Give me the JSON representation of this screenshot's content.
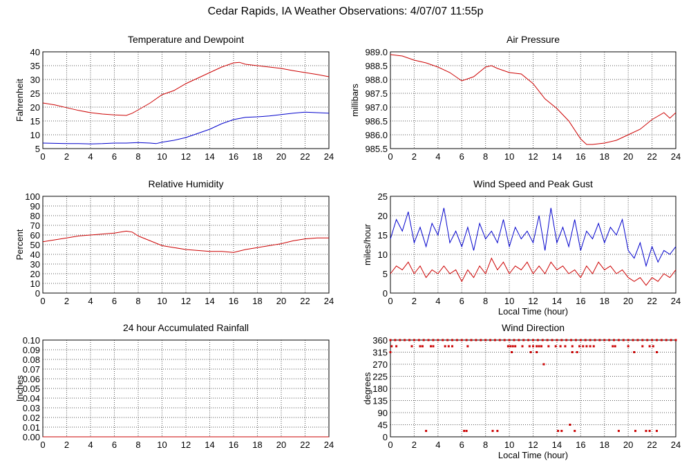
{
  "title": "Cedar Rapids, IA Weather Observations: 4/07/07 11:55p",
  "colors": {
    "red": "#cc0000",
    "blue": "#0000cc",
    "grid": "#555555"
  },
  "chart_data": [
    {
      "id": "temp",
      "type": "line",
      "title": "Temperature and Dewpoint",
      "xlabel": "",
      "ylabel": "Fahrenheit",
      "xlim": [
        0,
        24
      ],
      "ylim": [
        5,
        40
      ],
      "xticks": [
        "0",
        "2",
        "4",
        "6",
        "8",
        "10",
        "12",
        "14",
        "16",
        "18",
        "20",
        "22",
        "24"
      ],
      "yticks": [
        "5",
        "10",
        "15",
        "20",
        "25",
        "30",
        "35",
        "40"
      ],
      "grid": true,
      "series": [
        {
          "color": "#cc0000",
          "x": [
            0,
            1,
            2,
            3,
            4,
            5,
            6,
            7,
            7.5,
            8,
            9,
            10,
            11,
            12,
            13,
            14,
            15,
            16,
            16.5,
            17,
            18,
            19,
            20,
            21,
            22,
            23,
            24
          ],
          "values": [
            21.5,
            20.8,
            19.8,
            18.8,
            18.0,
            17.5,
            17.2,
            17.0,
            17.8,
            19.0,
            21.5,
            24.5,
            26.0,
            28.5,
            30.5,
            32.5,
            34.5,
            36.0,
            36.2,
            35.5,
            35.0,
            34.5,
            34.0,
            33.2,
            32.5,
            31.8,
            31.0
          ]
        },
        {
          "color": "#0000cc",
          "x": [
            0,
            1,
            2,
            3,
            4,
            5,
            6,
            7,
            8,
            9,
            9.5,
            10,
            11,
            12,
            13,
            14,
            15,
            16,
            17,
            18,
            19,
            20,
            21,
            22,
            23,
            24
          ],
          "values": [
            7.0,
            6.9,
            6.8,
            6.8,
            6.7,
            6.8,
            7.0,
            7.0,
            7.2,
            7.0,
            6.8,
            7.3,
            8.0,
            9.0,
            10.5,
            12.0,
            14.0,
            15.5,
            16.3,
            16.5,
            16.8,
            17.3,
            17.8,
            18.2,
            18.0,
            17.8
          ]
        }
      ]
    },
    {
      "id": "pressure",
      "type": "line",
      "title": "Air Pressure",
      "xlabel": "",
      "ylabel": "millibars",
      "xlim": [
        0,
        24
      ],
      "ylim": [
        985.5,
        989.0
      ],
      "xticks": [
        "0",
        "2",
        "4",
        "6",
        "8",
        "10",
        "12",
        "14",
        "16",
        "18",
        "20",
        "22",
        "24"
      ],
      "yticks": [
        "985.5",
        "986.0",
        "986.5",
        "987.0",
        "987.5",
        "988.0",
        "988.5",
        "989.0"
      ],
      "grid": true,
      "series": [
        {
          "color": "#cc0000",
          "x": [
            0,
            1,
            2,
            3,
            4,
            5,
            6,
            7,
            8,
            8.5,
            9,
            10,
            11,
            12,
            13,
            14,
            15,
            16,
            16.5,
            17,
            18,
            19,
            20,
            21,
            22,
            23,
            23.5,
            24
          ],
          "values": [
            988.9,
            988.85,
            988.7,
            988.6,
            988.45,
            988.25,
            987.95,
            988.1,
            988.45,
            988.5,
            988.4,
            988.25,
            988.2,
            987.85,
            987.3,
            986.95,
            986.5,
            985.85,
            985.65,
            985.65,
            985.7,
            985.8,
            986.0,
            986.2,
            986.55,
            986.8,
            986.6,
            986.8
          ]
        }
      ]
    },
    {
      "id": "humidity",
      "type": "line",
      "title": "Relative Humidity",
      "xlabel": "",
      "ylabel": "Percent",
      "xlim": [
        0,
        24
      ],
      "ylim": [
        0,
        100
      ],
      "xticks": [
        "0",
        "2",
        "4",
        "6",
        "8",
        "10",
        "12",
        "14",
        "16",
        "18",
        "20",
        "22",
        "24"
      ],
      "yticks": [
        "0",
        "10",
        "20",
        "30",
        "40",
        "50",
        "60",
        "70",
        "80",
        "90",
        "100"
      ],
      "grid": true,
      "series": [
        {
          "color": "#cc0000",
          "x": [
            0,
            1,
            2,
            3,
            4,
            5,
            6,
            7,
            7.5,
            8,
            9,
            10,
            11,
            12,
            13,
            14,
            15,
            16,
            17,
            18,
            19,
            20,
            21,
            22,
            23,
            24
          ],
          "values": [
            53,
            55,
            57,
            59,
            60,
            61,
            62,
            64,
            63,
            59,
            54,
            49,
            47,
            45,
            44,
            43,
            43,
            42,
            45,
            47,
            49,
            51,
            54,
            56,
            57,
            57
          ]
        }
      ]
    },
    {
      "id": "wind",
      "type": "line",
      "title": "Wind Speed and Peak Gust",
      "xlabel": "Local Time (hour)",
      "ylabel": "miles/hour",
      "xlim": [
        0,
        24
      ],
      "ylim": [
        0,
        25
      ],
      "xticks": [
        "0",
        "2",
        "4",
        "6",
        "8",
        "10",
        "12",
        "14",
        "16",
        "18",
        "20",
        "22",
        "24"
      ],
      "yticks": [
        "0",
        "5",
        "10",
        "15",
        "20",
        "25"
      ],
      "grid": true,
      "series": [
        {
          "color": "#0000cc",
          "x": [
            0,
            0.5,
            1,
            1.5,
            2,
            2.5,
            3,
            3.5,
            4,
            4.5,
            5,
            5.5,
            6,
            6.5,
            7,
            7.5,
            8,
            8.5,
            9,
            9.5,
            10,
            10.5,
            11,
            11.5,
            12,
            12.5,
            13,
            13.5,
            14,
            14.5,
            15,
            15.5,
            16,
            16.5,
            17,
            17.5,
            18,
            18.5,
            19,
            19.5,
            20,
            20.5,
            21,
            21.5,
            22,
            22.5,
            23,
            23.5,
            24
          ],
          "values": [
            14,
            19,
            16,
            21,
            13,
            17,
            12,
            18,
            15,
            22,
            13,
            16,
            12,
            17,
            11,
            18,
            14,
            16,
            13,
            19,
            12,
            17,
            14,
            16,
            13,
            20,
            11,
            22,
            13,
            17,
            12,
            19,
            11,
            16,
            14,
            18,
            13,
            17,
            15,
            19,
            11,
            9,
            13,
            7,
            12,
            8,
            11,
            10,
            12
          ]
        },
        {
          "color": "#cc0000",
          "x": [
            0,
            0.5,
            1,
            1.5,
            2,
            2.5,
            3,
            3.5,
            4,
            4.5,
            5,
            5.5,
            6,
            6.5,
            7,
            7.5,
            8,
            8.5,
            9,
            9.5,
            10,
            10.5,
            11,
            11.5,
            12,
            12.5,
            13,
            13.5,
            14,
            14.5,
            15,
            15.5,
            16,
            16.5,
            17,
            17.5,
            18,
            18.5,
            19,
            19.5,
            20,
            20.5,
            21,
            21.5,
            22,
            22.5,
            23,
            23.5,
            24
          ],
          "values": [
            5,
            7,
            6,
            8,
            5,
            7,
            4,
            6,
            5,
            7,
            5,
            6,
            3,
            6,
            4,
            7,
            5,
            9,
            6,
            8,
            5,
            7,
            6,
            8,
            5,
            7,
            5,
            8,
            6,
            7,
            5,
            6,
            4,
            7,
            5,
            8,
            6,
            7,
            5,
            6,
            4,
            3,
            4,
            2,
            4,
            3,
            5,
            4,
            6
          ]
        }
      ]
    },
    {
      "id": "rain",
      "type": "line",
      "title": "24 hour Accumulated Rainfall",
      "xlabel": "",
      "ylabel": "Inches",
      "xlim": [
        0,
        24
      ],
      "ylim": [
        0,
        0.1
      ],
      "xticks": [
        "0",
        "2",
        "4",
        "6",
        "8",
        "10",
        "12",
        "14",
        "16",
        "18",
        "20",
        "22",
        "24"
      ],
      "yticks": [
        "0.00",
        "0.01",
        "0.02",
        "0.03",
        "0.04",
        "0.05",
        "0.06",
        "0.07",
        "0.08",
        "0.09",
        "0.10"
      ],
      "grid": true,
      "series": [
        {
          "color": "#cc0000",
          "x": [
            0,
            24
          ],
          "values": [
            0,
            0
          ]
        }
      ]
    },
    {
      "id": "winddir",
      "type": "scatter",
      "title": "Wind Direction",
      "xlabel": "Local Time (hour)",
      "ylabel": "degrees",
      "xlim": [
        0,
        24
      ],
      "ylim": [
        0,
        360
      ],
      "xticks": [
        "0",
        "2",
        "4",
        "6",
        "8",
        "10",
        "12",
        "14",
        "16",
        "18",
        "20",
        "22",
        "24"
      ],
      "yticks": [
        "0",
        "45",
        "90",
        "135",
        "180",
        "225",
        "270",
        "315",
        "360"
      ],
      "grid": true,
      "series": [
        {
          "color": "#cc0000",
          "x": [
            0,
            0.4,
            0.8,
            1.2,
            1.6,
            2.0,
            2.4,
            2.8,
            3.2,
            3.6,
            4.0,
            4.4,
            4.8,
            5.2,
            5.6,
            6.0,
            6.4,
            6.8,
            7.2,
            7.6,
            8.0,
            8.4,
            8.8,
            9.2,
            9.6,
            10.0,
            10.4,
            10.8,
            11.2,
            11.6,
            12.0,
            12.4,
            12.8,
            13.2,
            13.6,
            14.0,
            14.4,
            14.8,
            15.2,
            15.6,
            16.0,
            16.4,
            16.8,
            17.2,
            17.6,
            18.0,
            18.4,
            18.8,
            19.2,
            19.6,
            20.0,
            20.4,
            20.8,
            21.2,
            21.6,
            22.0,
            22.4,
            22.8,
            23.2,
            23.6,
            24.0,
            0.1,
            0.5,
            1.8,
            2.5,
            2.7,
            3.4,
            3.6,
            4.6,
            4.9,
            5.2,
            6.5,
            9.9,
            10.1,
            10.3,
            10.5,
            11.1,
            11.7,
            12.0,
            12.3,
            12.5,
            12.7,
            13.3,
            13.9,
            14.3,
            14.7,
            15.3,
            15.9,
            16.2,
            16.5,
            16.8,
            17.1,
            18.7,
            18.9,
            20.0,
            21.2,
            21.8,
            22.1,
            0.0,
            10.2,
            11.8,
            12.3,
            15.3,
            15.7,
            20.5,
            22.4,
            12.9,
            3.0,
            6.2,
            6.4,
            8.6,
            9.0,
            14.1,
            14.4,
            15.1,
            15.5,
            19.2,
            20.6,
            21.5,
            21.8,
            22.4
          ],
          "values": [
            360,
            360,
            360,
            360,
            360,
            360,
            360,
            360,
            360,
            360,
            360,
            360,
            360,
            360,
            360,
            360,
            360,
            360,
            360,
            360,
            360,
            360,
            360,
            360,
            360,
            360,
            360,
            360,
            360,
            360,
            360,
            360,
            360,
            360,
            360,
            360,
            360,
            360,
            360,
            360,
            360,
            360,
            360,
            360,
            360,
            360,
            360,
            360,
            360,
            360,
            360,
            360,
            360,
            360,
            360,
            360,
            360,
            360,
            360,
            360,
            360,
            337,
            337,
            337,
            337,
            337,
            337,
            337,
            337,
            337,
            337,
            337,
            337,
            337,
            337,
            337,
            337,
            337,
            337,
            337,
            337,
            337,
            337,
            337,
            337,
            337,
            337,
            337,
            337,
            337,
            337,
            337,
            337,
            337,
            337,
            337,
            337,
            337,
            315,
            315,
            315,
            315,
            315,
            315,
            315,
            315,
            270,
            22,
            22,
            22,
            22,
            22,
            22,
            22,
            45,
            22,
            22,
            22,
            22,
            22,
            22
          ]
        }
      ]
    }
  ]
}
